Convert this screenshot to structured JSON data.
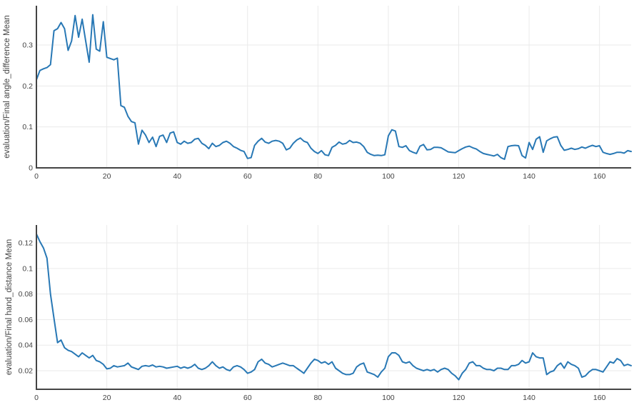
{
  "page": {
    "background": "#ffffff"
  },
  "style": {
    "line_color": "#2878b5",
    "axis_color": "#444444",
    "grid_color": "#eaeaea",
    "tick_label_color": "#444444",
    "line_width": 2,
    "axis_width": 2
  },
  "chart_data": [
    {
      "type": "line",
      "title": "",
      "xlabel": "",
      "ylabel": "evaluation/Final angle_difference Mean",
      "legend": "none",
      "grid": true,
      "xlim": [
        0,
        169
      ],
      "ylim": [
        0,
        0.396
      ],
      "x_tick_values": [
        0,
        20,
        40,
        60,
        80,
        100,
        120,
        140,
        160
      ],
      "x_tick_labels": [
        "0",
        "20",
        "40",
        "60",
        "80",
        "100",
        "120",
        "140",
        "160"
      ],
      "y_tick_values": [
        0,
        0.1,
        0.2,
        0.3
      ],
      "y_tick_labels": [
        "0",
        "0.1",
        "0.2",
        "0.3"
      ],
      "x_start": 0,
      "x_step": 1,
      "values": [
        0.215,
        0.238,
        0.242,
        0.245,
        0.252,
        0.335,
        0.34,
        0.355,
        0.34,
        0.287,
        0.31,
        0.372,
        0.319,
        0.363,
        0.31,
        0.258,
        0.374,
        0.29,
        0.285,
        0.357,
        0.27,
        0.267,
        0.264,
        0.268,
        0.152,
        0.148,
        0.126,
        0.113,
        0.11,
        0.058,
        0.092,
        0.08,
        0.062,
        0.075,
        0.052,
        0.077,
        0.08,
        0.062,
        0.085,
        0.088,
        0.062,
        0.058,
        0.065,
        0.06,
        0.062,
        0.07,
        0.072,
        0.06,
        0.055,
        0.047,
        0.06,
        0.052,
        0.055,
        0.062,
        0.065,
        0.06,
        0.052,
        0.048,
        0.043,
        0.04,
        0.023,
        0.025,
        0.055,
        0.065,
        0.072,
        0.063,
        0.06,
        0.065,
        0.067,
        0.065,
        0.06,
        0.044,
        0.048,
        0.06,
        0.068,
        0.073,
        0.065,
        0.062,
        0.048,
        0.04,
        0.035,
        0.042,
        0.032,
        0.03,
        0.05,
        0.055,
        0.063,
        0.058,
        0.06,
        0.067,
        0.062,
        0.063,
        0.06,
        0.052,
        0.038,
        0.033,
        0.03,
        0.031,
        0.03,
        0.032,
        0.078,
        0.093,
        0.09,
        0.052,
        0.05,
        0.054,
        0.042,
        0.038,
        0.035,
        0.053,
        0.057,
        0.044,
        0.045,
        0.05,
        0.05,
        0.049,
        0.044,
        0.039,
        0.038,
        0.037,
        0.042,
        0.047,
        0.051,
        0.053,
        0.049,
        0.046,
        0.04,
        0.035,
        0.033,
        0.031,
        0.029,
        0.033,
        0.025,
        0.021,
        0.052,
        0.054,
        0.055,
        0.054,
        0.03,
        0.024,
        0.062,
        0.045,
        0.07,
        0.076,
        0.038,
        0.066,
        0.071,
        0.075,
        0.076,
        0.055,
        0.043,
        0.045,
        0.048,
        0.045,
        0.047,
        0.051,
        0.048,
        0.052,
        0.055,
        0.052,
        0.054,
        0.038,
        0.035,
        0.033,
        0.035,
        0.038,
        0.038,
        0.036,
        0.042,
        0.04
      ]
    },
    {
      "type": "line",
      "title": "",
      "xlabel": "",
      "ylabel": "evaluation/Final hand_distance Mean",
      "legend": "none",
      "grid": true,
      "xlim": [
        0,
        169
      ],
      "ylim": [
        0.0055,
        0.134
      ],
      "x_tick_values": [
        0,
        20,
        40,
        60,
        80,
        100,
        120,
        140,
        160
      ],
      "x_tick_labels": [
        "0",
        "20",
        "40",
        "60",
        "80",
        "100",
        "120",
        "140",
        "160"
      ],
      "y_tick_values": [
        0.02,
        0.04,
        0.06,
        0.08,
        0.1,
        0.12
      ],
      "y_tick_labels": [
        "0.02",
        "0.04",
        "0.06",
        "0.08",
        "0.1",
        "0.12"
      ],
      "x_start": 0,
      "x_step": 1,
      "values": [
        0.127,
        0.121,
        0.116,
        0.108,
        0.08,
        0.061,
        0.042,
        0.044,
        0.038,
        0.036,
        0.035,
        0.033,
        0.031,
        0.034,
        0.032,
        0.03,
        0.032,
        0.028,
        0.027,
        0.025,
        0.0215,
        0.022,
        0.024,
        0.023,
        0.0235,
        0.024,
        0.026,
        0.023,
        0.022,
        0.021,
        0.0235,
        0.024,
        0.0235,
        0.0245,
        0.023,
        0.0235,
        0.023,
        0.022,
        0.0225,
        0.023,
        0.0235,
        0.022,
        0.023,
        0.022,
        0.023,
        0.025,
        0.022,
        0.021,
        0.022,
        0.024,
        0.027,
        0.024,
        0.022,
        0.023,
        0.021,
        0.02,
        0.023,
        0.024,
        0.023,
        0.021,
        0.018,
        0.019,
        0.021,
        0.027,
        0.029,
        0.026,
        0.025,
        0.023,
        0.024,
        0.025,
        0.026,
        0.025,
        0.024,
        0.024,
        0.022,
        0.02,
        0.018,
        0.022,
        0.026,
        0.029,
        0.028,
        0.026,
        0.027,
        0.025,
        0.027,
        0.022,
        0.02,
        0.018,
        0.017,
        0.017,
        0.018,
        0.023,
        0.025,
        0.026,
        0.019,
        0.018,
        0.017,
        0.015,
        0.019,
        0.022,
        0.031,
        0.034,
        0.034,
        0.032,
        0.027,
        0.026,
        0.027,
        0.024,
        0.022,
        0.021,
        0.02,
        0.021,
        0.02,
        0.021,
        0.019,
        0.021,
        0.022,
        0.021,
        0.018,
        0.016,
        0.013,
        0.018,
        0.021,
        0.026,
        0.027,
        0.024,
        0.024,
        0.022,
        0.021,
        0.021,
        0.02,
        0.022,
        0.022,
        0.021,
        0.021,
        0.024,
        0.024,
        0.025,
        0.028,
        0.026,
        0.027,
        0.034,
        0.031,
        0.03,
        0.03,
        0.017,
        0.019,
        0.02,
        0.024,
        0.026,
        0.022,
        0.027,
        0.025,
        0.024,
        0.022,
        0.015,
        0.016,
        0.019,
        0.021,
        0.021,
        0.02,
        0.019,
        0.023,
        0.027,
        0.026,
        0.0295,
        0.028,
        0.024,
        0.025,
        0.024
      ]
    }
  ]
}
